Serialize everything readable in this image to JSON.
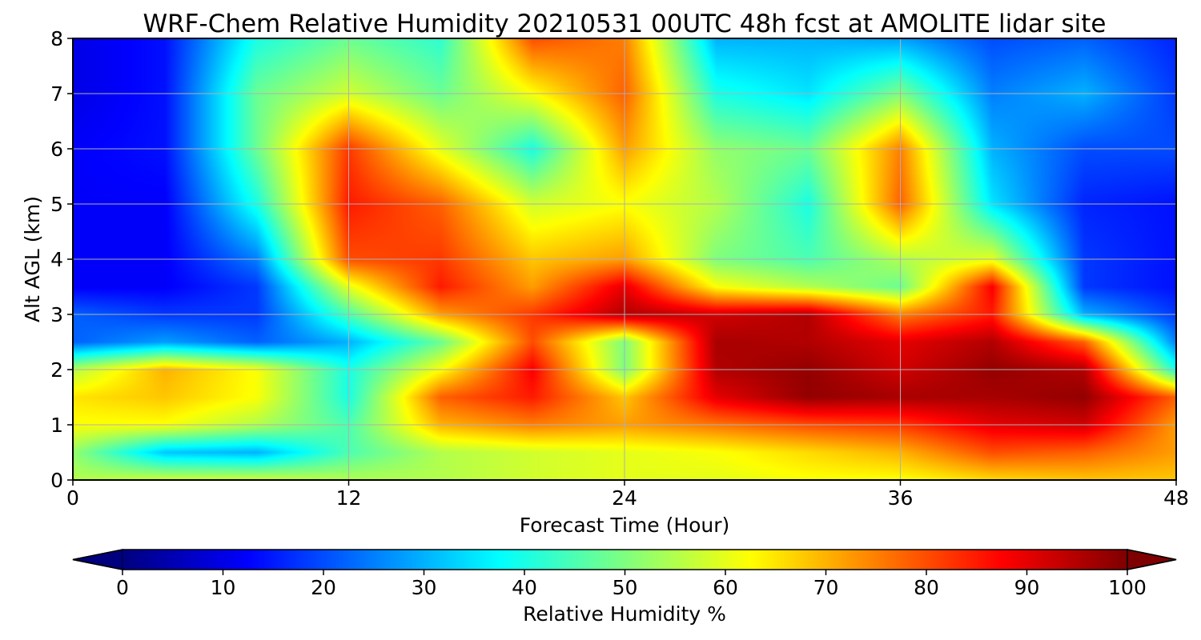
{
  "chart_data": {
    "type": "heatmap",
    "title": "WRF-Chem Relative Humidity 20210531 00UTC 48h fcst at AMOLITE lidar site",
    "xlabel": "Forecast Time (Hour)",
    "ylabel": "Alt AGL (km)",
    "xlim": [
      0,
      48
    ],
    "ylim": [
      0,
      8
    ],
    "x_ticks": [
      "0",
      "12",
      "24",
      "36",
      "48"
    ],
    "y_ticks": [
      "0",
      "1",
      "2",
      "3",
      "4",
      "5",
      "6",
      "7",
      "8"
    ],
    "grid": true,
    "colormap": "jet",
    "colorbar": {
      "label": "Relative Humidity %",
      "range": [
        0,
        100
      ],
      "ticks": [
        "0",
        "10",
        "20",
        "30",
        "40",
        "50",
        "60",
        "70",
        "80",
        "90",
        "100"
      ],
      "extend": "both",
      "orientation": "horizontal",
      "colors": [
        "#00007f",
        "#0000ff",
        "#007fff",
        "#00ffff",
        "#7fff7f",
        "#ffff00",
        "#ff7f00",
        "#ff0000",
        "#7f0000"
      ]
    },
    "x": [
      0,
      4,
      8,
      12,
      16,
      20,
      24,
      28,
      32,
      36,
      40,
      44,
      48
    ],
    "y": [
      0,
      0.5,
      1,
      1.5,
      2,
      2.5,
      3,
      3.5,
      4,
      5,
      6,
      7,
      8
    ],
    "values": [
      [
        55,
        58,
        58,
        55,
        55,
        58,
        60,
        60,
        62,
        62,
        66,
        68,
        68
      ],
      [
        52,
        32,
        30,
        45,
        55,
        58,
        60,
        62,
        66,
        70,
        80,
        78,
        72
      ],
      [
        62,
        62,
        55,
        45,
        70,
        75,
        72,
        76,
        80,
        82,
        90,
        92,
        72
      ],
      [
        65,
        68,
        62,
        40,
        78,
        85,
        68,
        90,
        98,
        96,
        96,
        98,
        78
      ],
      [
        55,
        70,
        62,
        40,
        62,
        88,
        50,
        95,
        98,
        92,
        98,
        95,
        40
      ],
      [
        22,
        28,
        22,
        30,
        48,
        80,
        50,
        96,
        95,
        90,
        95,
        78,
        25
      ],
      [
        22,
        18,
        18,
        45,
        72,
        82,
        95,
        92,
        95,
        75,
        85,
        30,
        18
      ],
      [
        12,
        12,
        18,
        60,
        85,
        72,
        90,
        62,
        55,
        48,
        88,
        18,
        14
      ],
      [
        12,
        12,
        25,
        80,
        82,
        68,
        72,
        50,
        45,
        55,
        60,
        18,
        14
      ],
      [
        12,
        12,
        40,
        85,
        78,
        58,
        62,
        55,
        40,
        78,
        35,
        16,
        14
      ],
      [
        12,
        14,
        48,
        82,
        60,
        40,
        72,
        52,
        48,
        75,
        30,
        20,
        20
      ],
      [
        10,
        14,
        48,
        58,
        48,
        62,
        78,
        40,
        35,
        50,
        25,
        30,
        18
      ],
      [
        10,
        14,
        40,
        48,
        42,
        80,
        75,
        30,
        30,
        28,
        20,
        22,
        16
      ]
    ]
  }
}
